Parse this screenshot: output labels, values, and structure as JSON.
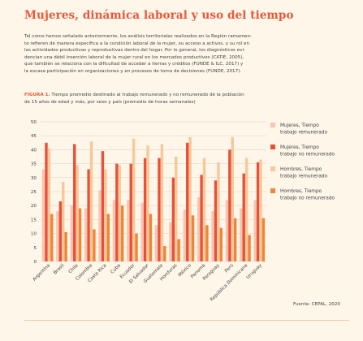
{
  "page": {
    "title": "Mujeres, dinámica laboral y uso del tiempo",
    "paragraph_lines": [
      "Tal como hemos señalado anteriormente, los análisis territoriales realizados en la Región ramamen-",
      "te refieren de manera específica a la condición laboral de la mujer, su acceso a activos, y su rol en",
      "las actividades productivas y reproductivas dentro del hogar. Por lo general, los diagnósticos evi-",
      "dencian una débil inserción laboral de la mujer rural en los mercados productivos (CATIE, 2005),",
      "que también se relaciona con la dificultad de acceder a tierras y créditos (FUNDE & ILC, 2017) y",
      "la escasa participación en organizaciones y en procesos de toma de decisiones (FUNDE, 2017)."
    ],
    "figure_label": "FIGURA 1.",
    "figure_caption_line1": " Tiempo promedio destinado al trabajo remunerado y no remunerado de la población",
    "figure_caption_line2": "de 15 años de edad y más, por sexo y país (promedio de horas semanales)",
    "source": "Fuente: CEPAL, 2020"
  },
  "colors": {
    "title": "#e8583a",
    "grid": "#d8d0c4",
    "axis_text": "#444444",
    "rule": "#f1c7a8"
  },
  "chart_data": {
    "type": "bar",
    "ylim": [
      0,
      50
    ],
    "yticks": [
      0,
      5,
      10,
      15,
      20,
      25,
      30,
      35,
      40,
      45,
      50
    ],
    "grid": true,
    "legend_position": "right",
    "categories": [
      "Argentina",
      "Brasil",
      "Chile",
      "Colombia",
      "Costa Rica",
      "Cuba",
      "Ecuador",
      "El Salvador",
      "Guatemala",
      "Honduras",
      "México",
      "Panamá",
      "Paraguay",
      "Perú",
      "República Dominicana",
      "Uruguay"
    ],
    "series": [
      {
        "name": "Mujeres, Tiempo trabajo remunerado",
        "color": "#f7c5b0",
        "values": [
          33,
          18,
          20,
          19,
          25.5,
          22,
          22,
          21,
          13,
          14,
          18.5,
          23,
          18,
          22,
          19,
          22
        ]
      },
      {
        "name": "Mujeres, Tiempo trabajo no remunerado",
        "color": "#e8503a",
        "values": [
          42.5,
          21.5,
          42,
          33,
          39.5,
          35,
          35,
          37,
          37,
          30,
          42.5,
          31,
          29,
          40,
          31.5,
          35.5
        ]
      },
      {
        "name": "Hombres, Tiempo trabajo remunerado",
        "color": "#f6c89a",
        "values": [
          40.5,
          28.5,
          34.5,
          43,
          33,
          34.5,
          44,
          41.5,
          42,
          37.5,
          44.5,
          37,
          35.5,
          44.5,
          37,
          36.5
        ]
      },
      {
        "name": "Hombres, Tiempo trabajo no remunerado",
        "color": "#ef8538",
        "values": [
          17,
          10.5,
          19,
          11.5,
          17,
          20,
          10,
          17,
          5.5,
          8,
          16.5,
          13,
          12,
          15.5,
          9.5,
          15.5
        ]
      }
    ]
  }
}
